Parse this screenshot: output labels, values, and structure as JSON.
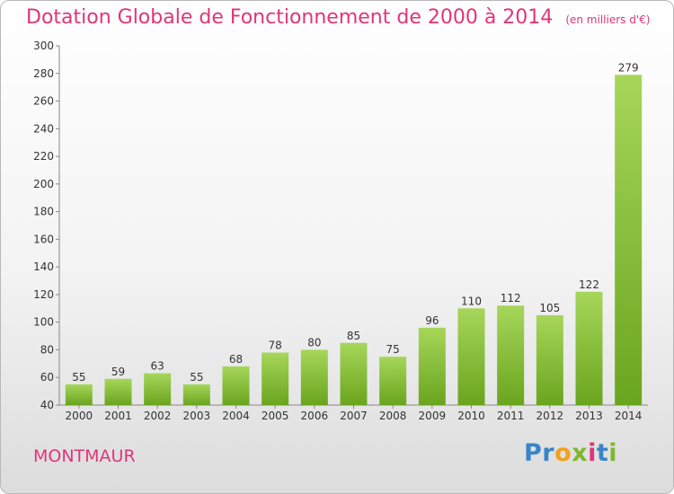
{
  "header": {
    "title": "Dotation Globale de Fonctionnement de 2000 à 2014",
    "unit": "(en milliers d'€)"
  },
  "footer": {
    "commune": "MONTMAUR",
    "logo": {
      "letters": [
        "P",
        "r",
        "o",
        "x",
        "i",
        "t",
        "i"
      ],
      "colors": [
        "#3a84c9",
        "#3a84c9",
        "#f0a21e",
        "#7fb82e",
        "#e0357a",
        "#3a84c9",
        "#7fb82e"
      ]
    }
  },
  "chart_data": {
    "type": "bar",
    "categories": [
      "2000",
      "2001",
      "2002",
      "2003",
      "2004",
      "2005",
      "2006",
      "2007",
      "2008",
      "2009",
      "2010",
      "2011",
      "2012",
      "2013",
      "2014"
    ],
    "values": [
      55,
      59,
      63,
      55,
      68,
      78,
      80,
      85,
      75,
      96,
      110,
      112,
      105,
      122,
      279
    ],
    "ylim": [
      40,
      300
    ],
    "yticks": [
      40,
      60,
      80,
      100,
      120,
      140,
      160,
      180,
      200,
      220,
      240,
      260,
      280,
      300
    ],
    "grid": false,
    "colors": {
      "bar_top": "#a6d65a",
      "bar_bottom": "#6aa51e",
      "axis": "#888888",
      "text": "#333333"
    }
  }
}
